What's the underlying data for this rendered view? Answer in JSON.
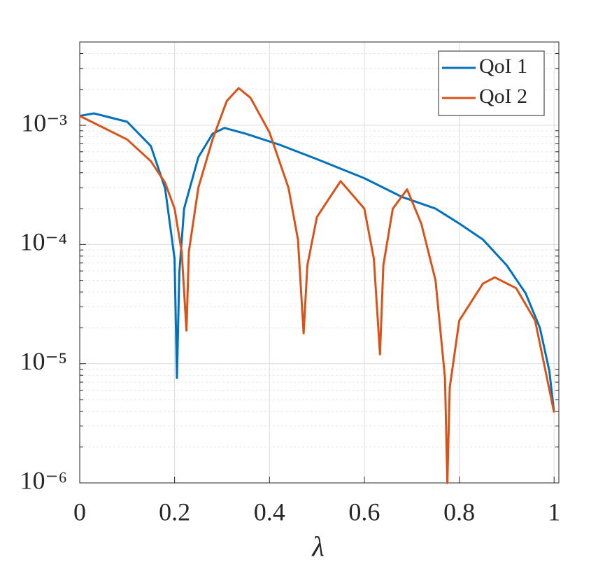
{
  "chart_data": {
    "type": "line",
    "x_label": "λ",
    "log_y": true,
    "grid": true,
    "minor_grid": true,
    "legend_position": "top-right",
    "xlim": [
      0,
      1.01
    ],
    "xticks": [
      0,
      0.2,
      0.4,
      0.6,
      0.8,
      1
    ],
    "ylim": [
      1e-06,
      0.005
    ],
    "yticks": [
      {
        "value": 1e-06,
        "label": "10⁻⁶"
      },
      {
        "value": 1e-05,
        "label": "10⁻⁵"
      },
      {
        "value": 0.0001,
        "label": "10⁻⁴"
      },
      {
        "value": 0.001,
        "label": "10⁻³"
      }
    ],
    "series": [
      {
        "name": "QoI 1",
        "color": "#0072bd",
        "x": [
          0,
          0.03,
          0.1,
          0.15,
          0.18,
          0.2,
          0.205,
          0.21,
          0.22,
          0.25,
          0.28,
          0.305,
          0.35,
          0.42,
          0.5,
          0.6,
          0.68,
          0.75,
          0.8,
          0.85,
          0.9,
          0.94,
          0.97,
          0.99,
          1
        ],
        "values": [
          0.0012,
          0.00126,
          0.00107,
          0.00067,
          0.000295,
          7.6e-05,
          7.6e-06,
          5.8e-05,
          0.0002,
          0.00054,
          0.00085,
          0.00095,
          0.00085,
          0.00069,
          0.00052,
          0.00036,
          0.00025,
          0.0002,
          0.00015,
          0.00011,
          6.7e-05,
          3.9e-05,
          2e-05,
          8.7e-06,
          3.9e-06
        ]
      },
      {
        "name": "QoI 2",
        "color": "#d95319",
        "x": [
          0,
          0.1,
          0.15,
          0.18,
          0.2,
          0.215,
          0.225,
          0.23,
          0.25,
          0.28,
          0.31,
          0.335,
          0.36,
          0.4,
          0.44,
          0.46,
          0.472,
          0.48,
          0.5,
          0.55,
          0.6,
          0.62,
          0.633,
          0.64,
          0.66,
          0.69,
          0.72,
          0.75,
          0.77,
          0.775,
          0.78,
          0.8,
          0.85,
          0.875,
          0.92,
          0.96,
          1
        ],
        "values": [
          0.0012,
          0.00076,
          0.0005,
          0.00033,
          0.0002,
          8.7e-05,
          1.9e-05,
          8.7e-05,
          0.0003,
          0.00076,
          0.0016,
          0.00205,
          0.0017,
          0.00087,
          0.0003,
          0.00011,
          1.8e-05,
          6.7e-05,
          0.00017,
          0.00034,
          0.0002,
          7.6e-05,
          1.2e-05,
          6.7e-05,
          0.0002,
          0.00029,
          0.00015,
          5e-05,
          7.6e-06,
          1e-06,
          6.3e-06,
          2.3e-05,
          4.7e-05,
          5.3e-05,
          4.3e-05,
          2.3e-05,
          3.9e-06
        ]
      }
    ]
  }
}
